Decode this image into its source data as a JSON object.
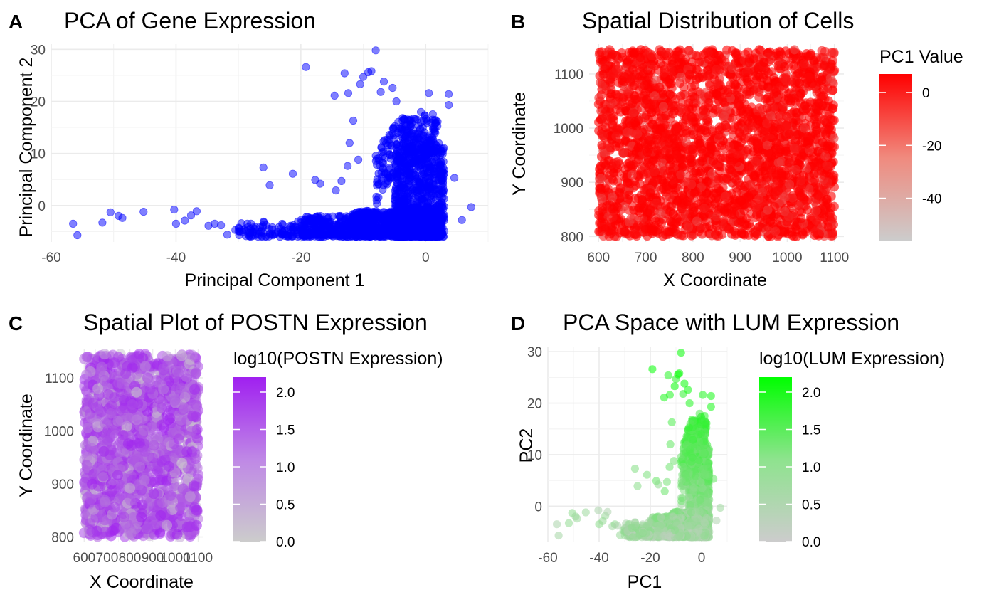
{
  "chart_data": [
    {
      "panel": "A",
      "type": "scatter",
      "title": "PCA of Gene Expression",
      "xlabel": "Principal Component 1",
      "ylabel": "Principal Component 2",
      "xlim": [
        -60,
        10
      ],
      "ylim": [
        -7,
        31
      ],
      "xticks": [
        -60,
        -40,
        -20,
        0
      ],
      "yticks": [
        0,
        10,
        20,
        30
      ],
      "color": "#0000ff",
      "outliers": [
        [
          -56.5,
          -3.5
        ],
        [
          -55.8,
          -5.7
        ],
        [
          -50.5,
          -1.3
        ],
        [
          -51.8,
          -3.3
        ],
        [
          -49.2,
          -2
        ],
        [
          -48.6,
          -2.4
        ],
        [
          -45.2,
          -1.2
        ],
        [
          -40.3,
          -0.8
        ],
        [
          -40,
          -3.5
        ],
        [
          -38.6,
          -2.9
        ],
        [
          -37.6,
          -1.9
        ],
        [
          -36.7,
          -1.1
        ],
        [
          -34.8,
          -3.9
        ],
        [
          -33.8,
          -3.5
        ],
        [
          -32.8,
          -3.8
        ],
        [
          -31.8,
          -5.6
        ],
        [
          -30.5,
          -4.7
        ],
        [
          -26,
          7.3
        ],
        [
          -25,
          3.9
        ],
        [
          -21.3,
          6.1
        ],
        [
          -19.2,
          26.6
        ],
        [
          -17.7,
          4.9
        ],
        [
          -16.9,
          4.2
        ],
        [
          -13.5,
          4.7
        ],
        [
          -13,
          25.4
        ],
        [
          -14.6,
          21.1
        ],
        [
          -12.4,
          21.6
        ],
        [
          -10.5,
          23.3
        ],
        [
          -10,
          24.7
        ],
        [
          -9.2,
          25.6
        ],
        [
          -8.7,
          25.8
        ],
        [
          -8,
          29.8
        ],
        [
          -7.2,
          21.8
        ],
        [
          -6.7,
          23.8
        ],
        [
          -5.3,
          22.6
        ],
        [
          -3.5,
          16.6
        ],
        [
          -4.7,
          20
        ],
        [
          -12.5,
          7.6
        ],
        [
          -14.4,
          2.9
        ],
        [
          -10.8,
          8.8
        ],
        [
          -12.2,
          12
        ],
        [
          -11.6,
          16.3
        ],
        [
          0.5,
          21.6
        ],
        [
          3.7,
          21.4
        ],
        [
          3.7,
          19.3
        ],
        [
          7.3,
          -0.3
        ],
        [
          4.6,
          5.3
        ],
        [
          5.8,
          -2.8
        ]
      ],
      "core_clusters": [
        {
          "x": [
            -5,
            3
          ],
          "y": [
            -6,
            12
          ],
          "n": 900
        },
        {
          "x": [
            -3,
            2
          ],
          "y": [
            10,
            18
          ],
          "n": 120
        },
        {
          "x": [
            -12,
            2
          ],
          "y": [
            -6,
            -1
          ],
          "n": 700
        },
        {
          "x": [
            -20,
            -8
          ],
          "y": [
            -6,
            -2
          ],
          "n": 350
        },
        {
          "x": [
            -30,
            -20
          ],
          "y": [
            -6,
            -3
          ],
          "n": 100
        },
        {
          "x": [
            -8,
            -3
          ],
          "y": [
            0,
            20
          ],
          "n": 120
        }
      ]
    },
    {
      "panel": "B",
      "type": "scatter",
      "title": "Spatial Distribution of Cells",
      "xlabel": "X Coordinate",
      "ylabel": "Y Coordinate",
      "xlim": [
        580,
        1120
      ],
      "ylim": [
        790,
        1155
      ],
      "xticks": [
        600,
        700,
        800,
        900,
        1000,
        1100
      ],
      "yticks": [
        800,
        900,
        1000,
        1100
      ],
      "points_extent": {
        "x": [
          600,
          1100
        ],
        "y": [
          800,
          1145
        ]
      },
      "point_count": 2800,
      "legend": {
        "title": "PC1 Value",
        "ticks": [
          0,
          -20,
          -40
        ],
        "range": [
          -56,
          7
        ],
        "color_low": "#cccccc",
        "color_high": "#ff0000",
        "position": "right"
      }
    },
    {
      "panel": "C",
      "type": "scatter",
      "title": "Spatial Plot of POSTN Expression",
      "xlabel": "X Coordinate",
      "ylabel": "Y Coordinate",
      "xlim": [
        580,
        1120
      ],
      "ylim": [
        790,
        1155
      ],
      "xticks": [
        600,
        700,
        800,
        900,
        1000,
        1100
      ],
      "xtick_labels": [
        "600",
        "700",
        "800",
        "900",
        "1000",
        "1100"
      ],
      "yticks": [
        800,
        900,
        1000,
        1100
      ],
      "points_extent": {
        "x": [
          600,
          1100
        ],
        "y": [
          800,
          1145
        ]
      },
      "point_count": 1600,
      "legend": {
        "title": "log10(POSTN Expression)",
        "ticks": [
          2.0,
          1.5,
          1.0,
          0.5,
          0.0
        ],
        "range": [
          0,
          2.2
        ],
        "color_low": "#cccccc",
        "color_high": "#a020f0",
        "position": "right"
      }
    },
    {
      "panel": "D",
      "type": "scatter",
      "title": "PCA Space with LUM Expression",
      "xlabel": "PC1",
      "ylabel": "PC2",
      "xlim": [
        -60,
        10
      ],
      "ylim": [
        -7,
        31
      ],
      "xticks": [
        -60,
        -40,
        -20,
        0
      ],
      "yticks": [
        0,
        10,
        20,
        30
      ],
      "legend": {
        "title": "log10(LUM Expression)",
        "ticks": [
          2.0,
          1.5,
          1.0,
          0.5,
          0.0
        ],
        "range": [
          0,
          2.2
        ],
        "color_low": "#cccccc",
        "color_high": "#00ff00",
        "position": "right"
      }
    }
  ]
}
